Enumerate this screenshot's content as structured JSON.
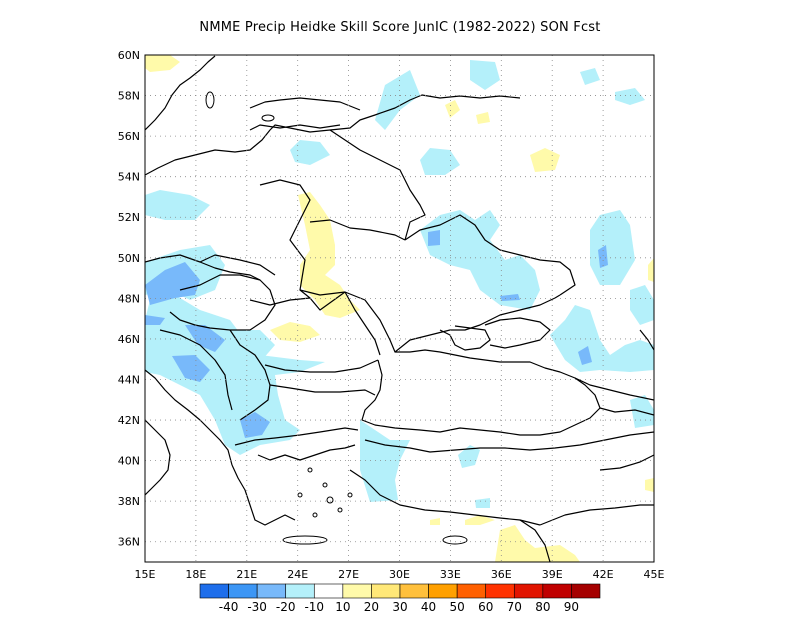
{
  "title": "NMME Precip Heidke Skill Score JunIC (1982-2022) SON Fcst",
  "map": {
    "lon_range": [
      15,
      45
    ],
    "lat_range": [
      35,
      60
    ],
    "lon_ticks": [
      "15E",
      "18E",
      "21E",
      "24E",
      "27E",
      "30E",
      "33E",
      "36E",
      "39E",
      "42E",
      "45E"
    ],
    "lat_ticks": [
      "36N",
      "38N",
      "40N",
      "42N",
      "44N",
      "46N",
      "48N",
      "50N",
      "52N",
      "54N",
      "56N",
      "58N",
      "60N"
    ],
    "gridlines": "dotted"
  },
  "legend": {
    "colors": [
      "#1e6eeb",
      "#3c96f5",
      "#78b9fa",
      "#b4f0fa",
      "#ffffff",
      "#fffaaa",
      "#ffe878",
      "#ffc03c",
      "#ffa000",
      "#ff6000",
      "#ff3200",
      "#e11400",
      "#c00000",
      "#a50000"
    ],
    "labels": [
      "-40",
      "-30",
      "-20",
      "-10",
      "10",
      "20",
      "30",
      "40",
      "50",
      "60",
      "70",
      "80",
      "90"
    ]
  },
  "colors": {
    "positive_10": "#fffaaa",
    "positive_20": "#ffe878",
    "negative_10": "#b4f0fa",
    "negative_20": "#78b9fa"
  }
}
